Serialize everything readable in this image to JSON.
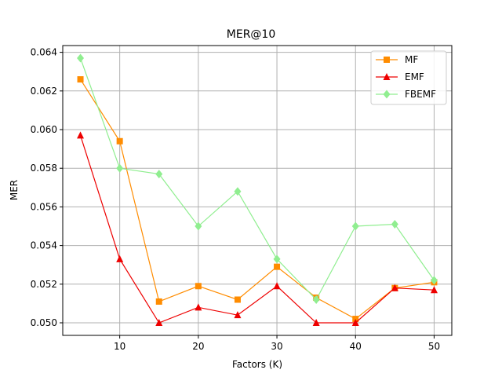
{
  "chart_data": {
    "type": "line",
    "title": "MER@10",
    "xlabel": "Factors (K)",
    "ylabel": "MER",
    "x": [
      5,
      10,
      15,
      20,
      25,
      30,
      35,
      40,
      45,
      50
    ],
    "xlim": [
      2.75,
      52.25
    ],
    "ylim": [
      0.04935,
      0.06435
    ],
    "xticks": [
      10,
      20,
      30,
      40,
      50
    ],
    "yticks": [
      0.05,
      0.052,
      0.054,
      0.056,
      0.058,
      0.06,
      0.062,
      0.064
    ],
    "ytick_labels": [
      "0.050",
      "0.052",
      "0.054",
      "0.056",
      "0.058",
      "0.060",
      "0.062",
      "0.064"
    ],
    "grid": true,
    "legend_position": "top-right",
    "series": [
      {
        "name": "MF",
        "color": "#ff8c00",
        "marker": "square",
        "values": [
          0.0626,
          0.0594,
          0.0511,
          0.0519,
          0.0512,
          0.0529,
          0.0513,
          0.0502,
          0.0518,
          0.0521
        ]
      },
      {
        "name": "EMF",
        "color": "#ee0000",
        "marker": "triangle",
        "values": [
          0.0597,
          0.0533,
          0.05,
          0.0508,
          0.0504,
          0.0519,
          0.05,
          0.05,
          0.0518,
          0.0517
        ]
      },
      {
        "name": "FBEMF",
        "color": "#90ee90",
        "marker": "diamond",
        "values": [
          0.0637,
          0.058,
          0.0577,
          0.055,
          0.0568,
          0.0533,
          0.0512,
          0.055,
          0.0551,
          0.0522
        ]
      }
    ]
  }
}
